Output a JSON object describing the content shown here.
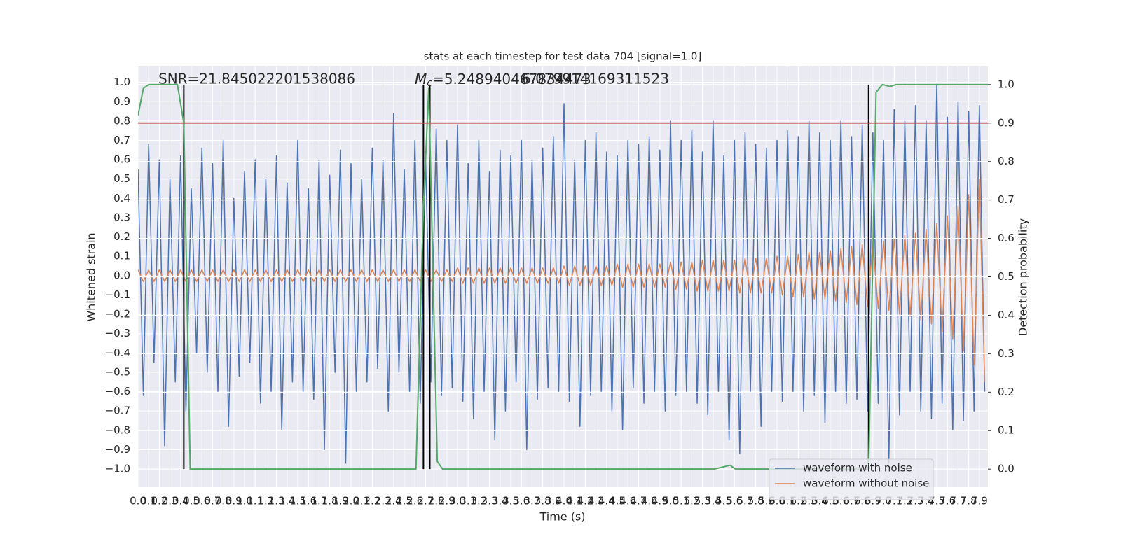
{
  "chart_data": {
    "type": "line",
    "title": "stats at each timestep for test data 704 [signal=1.0]",
    "xlabel": "Time (s)",
    "ylabel": "Whitened strain",
    "y2label": "Detection probability",
    "annotations": [
      {
        "text": "SNR=21.845022201538086"
      },
      {
        "symbol": "M",
        "subscript": "c",
        "text": "=5.248940467834473"
      },
      {
        "text": "6.079914169311523"
      }
    ],
    "grid": true,
    "y2grid": true,
    "legend": "lower right",
    "xlim": [
      0,
      7.98
    ],
    "ylim": [
      -1.094,
      1.082
    ],
    "y2lim": [
      -0.047,
      1.047
    ],
    "xticks": [
      {
        "value": 0,
        "label": "0.0"
      },
      0.1,
      0.2,
      0.3,
      0.4,
      0.5,
      0.6,
      0.7,
      0.8,
      0.9,
      {
        "value": 1,
        "label": "1.0"
      },
      1.1,
      1.2,
      1.3,
      1.4,
      1.5,
      1.6,
      1.7,
      1.8,
      1.9,
      {
        "value": 2,
        "label": "2.0"
      },
      2.1,
      2.2,
      2.3,
      2.4,
      2.5,
      2.6,
      2.7,
      2.8,
      2.9,
      {
        "value": 3,
        "label": "3.0"
      },
      3.1,
      3.2,
      3.3,
      3.4,
      3.5,
      3.6,
      3.7,
      3.8,
      3.9,
      {
        "value": 4,
        "label": "4.0"
      },
      4.1,
      4.2,
      4.3,
      4.4,
      4.5,
      4.6,
      4.7,
      4.8,
      4.9,
      {
        "value": 5,
        "label": "5.0"
      },
      5.1,
      5.2,
      5.3,
      5.4,
      5.5,
      5.6,
      5.7,
      5.8,
      5.9,
      {
        "value": 6,
        "label": "6.0"
      },
      6.1,
      6.2,
      6.3,
      6.4,
      6.5,
      6.6,
      6.7,
      6.8,
      6.9,
      {
        "value": 7,
        "label": "7.0"
      },
      7.1,
      7.2,
      7.3,
      7.4,
      7.5,
      7.6,
      7.7,
      7.8,
      7.9
    ],
    "yticks": [
      {
        "value": -1,
        "label": "−1.0"
      },
      {
        "value": -0.9,
        "label": "−0.9"
      },
      {
        "value": -0.8,
        "label": "−0.8"
      },
      {
        "value": -0.7,
        "label": "−0.7"
      },
      {
        "value": -0.6,
        "label": "−0.6"
      },
      {
        "value": -0.5,
        "label": "−0.5"
      },
      {
        "value": -0.4,
        "label": "−0.4"
      },
      {
        "value": -0.3,
        "label": "−0.3"
      },
      {
        "value": -0.2,
        "label": "−0.2"
      },
      {
        "value": -0.1,
        "label": "−0.1"
      },
      {
        "value": 0,
        "label": "0.0"
      },
      0.1,
      0.2,
      0.3,
      0.4,
      0.5,
      0.6,
      0.7,
      0.8,
      0.9,
      {
        "value": 1,
        "label": "1.0"
      }
    ],
    "y2ticks": [
      {
        "value": 0,
        "label": "0.0"
      },
      0.1,
      0.2,
      0.3,
      0.4,
      0.5,
      0.6,
      0.7,
      0.8,
      0.9,
      {
        "value": 1,
        "label": "1.0"
      }
    ],
    "x": [
      0,
      0.05,
      0.1,
      0.15,
      0.2,
      0.25,
      0.3,
      0.35,
      0.4,
      0.45,
      0.5,
      0.55,
      0.6,
      0.65,
      0.7,
      0.75,
      0.8,
      0.85,
      0.9,
      0.95,
      1,
      1.05,
      1.1,
      1.15,
      1.2,
      1.25,
      1.3,
      1.35,
      1.4,
      1.45,
      1.5,
      1.55,
      1.6,
      1.65,
      1.7,
      1.75,
      1.8,
      1.85,
      1.9,
      1.95,
      2,
      2.05,
      2.1,
      2.15,
      2.2,
      2.25,
      2.3,
      2.35,
      2.4,
      2.45,
      2.5,
      2.55,
      2.6,
      2.65,
      2.7,
      2.75,
      2.8,
      2.85,
      2.9,
      2.95,
      3,
      3.05,
      3.1,
      3.15,
      3.2,
      3.25,
      3.3,
      3.35,
      3.4,
      3.45,
      3.5,
      3.55,
      3.6,
      3.65,
      3.7,
      3.75,
      3.8,
      3.85,
      3.9,
      3.95,
      4,
      4.05,
      4.1,
      4.15,
      4.2,
      4.25,
      4.3,
      4.35,
      4.4,
      4.45,
      4.5,
      4.55,
      4.6,
      4.65,
      4.7,
      4.75,
      4.8,
      4.85,
      4.9,
      4.95,
      5,
      5.05,
      5.1,
      5.15,
      5.2,
      5.25,
      5.3,
      5.35,
      5.4,
      5.45,
      5.5,
      5.55,
      5.6,
      5.65,
      5.7,
      5.75,
      5.8,
      5.85,
      5.9,
      5.95,
      6,
      6.05,
      6.1,
      6.15,
      6.2,
      6.25,
      6.3,
      6.35,
      6.4,
      6.45,
      6.5,
      6.55,
      6.6,
      6.65,
      6.7,
      6.75,
      6.8,
      6.85,
      6.9,
      6.95,
      7,
      7.05,
      7.1,
      7.15,
      7.2,
      7.25,
      7.3,
      7.35,
      7.4,
      7.45,
      7.5,
      7.55,
      7.6,
      7.65,
      7.7,
      7.75,
      7.8,
      7.85,
      7.9,
      7.95
    ],
    "series": [
      {
        "name": "waveform with noise",
        "color": "#4c72b0",
        "values": [
          0.55,
          -0.62,
          0.68,
          -0.45,
          0.6,
          -0.88,
          0.5,
          -0.55,
          0.62,
          -0.7,
          0.45,
          -0.4,
          0.66,
          -0.5,
          0.58,
          -0.6,
          0.7,
          -0.78,
          0.4,
          -0.52,
          0.54,
          -0.45,
          0.6,
          -0.66,
          0.5,
          -0.6,
          0.62,
          -0.8,
          0.48,
          -0.55,
          0.7,
          -0.6,
          0.45,
          -0.64,
          0.6,
          -0.9,
          0.52,
          -0.5,
          0.65,
          -0.97,
          0.58,
          -0.6,
          0.5,
          -0.55,
          0.66,
          -0.48,
          0.6,
          -0.7,
          0.84,
          -0.5,
          0.55,
          -0.6,
          0.7,
          -0.66,
          0.62,
          -0.55,
          0.76,
          -0.62,
          0.7,
          -0.58,
          0.78,
          -0.65,
          0.58,
          -0.74,
          0.7,
          -0.6,
          0.54,
          -0.85,
          0.65,
          -0.7,
          0.62,
          -0.55,
          0.7,
          -0.9,
          0.6,
          -0.64,
          0.66,
          -0.58,
          0.72,
          -0.6,
          0.89,
          -0.65,
          0.6,
          -0.78,
          0.7,
          -0.62,
          0.74,
          -0.6,
          0.64,
          -0.7,
          0.62,
          -0.8,
          0.7,
          -0.58,
          0.68,
          -0.66,
          0.72,
          -0.6,
          0.65,
          -0.7,
          0.8,
          -0.62,
          0.7,
          -0.6,
          0.75,
          -0.66,
          0.64,
          -0.72,
          0.8,
          -0.6,
          0.62,
          -0.85,
          0.7,
          -0.92,
          0.74,
          -0.6,
          0.68,
          -0.78,
          0.66,
          -0.6,
          0.7,
          -0.65,
          0.75,
          -0.6,
          0.72,
          -0.7,
          0.8,
          -0.62,
          0.74,
          -0.76,
          0.7,
          -0.6,
          0.8,
          -0.66,
          0.72,
          -0.64,
          0.78,
          -0.7,
          0.74,
          -0.66,
          0.7,
          -0.97,
          0.86,
          -0.72,
          0.8,
          -0.6,
          0.88,
          -0.7,
          0.8,
          -0.74,
          0.99,
          -0.66,
          0.82,
          -0.8,
          0.9,
          -0.75,
          0.85,
          -0.7,
          0.88,
          -0.6
        ]
      },
      {
        "name": "waveform without noise",
        "color": "#dd8452",
        "values": [
          0.03,
          -0.03,
          0.03,
          -0.03,
          0.03,
          -0.03,
          0.03,
          -0.03,
          0.03,
          -0.03,
          0.03,
          -0.03,
          0.03,
          -0.03,
          0.03,
          -0.03,
          0.03,
          -0.03,
          0.03,
          -0.03,
          0.03,
          -0.03,
          0.03,
          -0.03,
          0.03,
          -0.03,
          0.03,
          -0.03,
          0.03,
          -0.03,
          0.03,
          -0.03,
          0.03,
          -0.03,
          0.03,
          -0.03,
          0.03,
          -0.03,
          0.03,
          -0.03,
          0.03,
          -0.03,
          0.03,
          -0.03,
          0.03,
          -0.03,
          0.03,
          -0.03,
          0.03,
          -0.03,
          0.03,
          -0.03,
          0.03,
          -0.03,
          0.03,
          -0.03,
          0.03,
          -0.03,
          0.03,
          -0.03,
          0.04,
          -0.04,
          0.04,
          -0.04,
          0.04,
          -0.04,
          0.04,
          -0.04,
          0.04,
          -0.04,
          0.04,
          -0.04,
          0.04,
          -0.04,
          0.04,
          -0.04,
          0.04,
          -0.04,
          0.04,
          -0.04,
          0.05,
          -0.05,
          0.05,
          -0.05,
          0.05,
          -0.05,
          0.05,
          -0.05,
          0.05,
          -0.05,
          0.06,
          -0.06,
          0.06,
          -0.06,
          0.06,
          -0.06,
          0.06,
          -0.06,
          0.06,
          -0.06,
          0.07,
          -0.07,
          0.07,
          -0.07,
          0.07,
          -0.08,
          0.08,
          -0.08,
          0.08,
          -0.08,
          0.08,
          -0.08,
          0.08,
          -0.09,
          0.09,
          -0.09,
          0.09,
          -0.09,
          0.09,
          -0.09,
          0.1,
          -0.1,
          0.1,
          -0.11,
          0.11,
          -0.11,
          0.12,
          -0.12,
          0.12,
          -0.12,
          0.13,
          -0.13,
          0.14,
          -0.14,
          0.15,
          -0.15,
          0.16,
          -0.16,
          0.17,
          -0.17,
          0.18,
          -0.18,
          0.19,
          -0.2,
          0.21,
          -0.21,
          0.22,
          -0.23,
          0.24,
          -0.25,
          0.27,
          -0.29,
          0.31,
          -0.33,
          0.36,
          -0.39,
          0.42,
          -0.46,
          0.5,
          -0.55
        ]
      },
      {
        "color": "#55a868",
        "axis": "y2",
        "x": [
          0,
          0.05,
          0.1,
          0.37,
          0.43,
          0.49,
          2.61,
          2.68,
          2.73,
          2.81,
          2.86,
          5.41,
          5.56,
          5.61,
          6.86,
          6.93,
          6.99,
          7.06,
          7.12,
          7.98
        ],
        "values": [
          0.92,
          0.99,
          1,
          1,
          0.9,
          0,
          0,
          0.68,
          0.99,
          0.02,
          0,
          0,
          0.01,
          0,
          0,
          0.98,
          1,
          0.995,
          1,
          1
        ]
      }
    ],
    "threshold": {
      "value": 0.9,
      "axis": "y2",
      "color": "#c44e52"
    },
    "vlines": {
      "x": [
        0.43,
        2.68,
        2.74,
        6.86
      ],
      "ymin": 0,
      "ymax": 1,
      "axis": "y2",
      "color": "#000000"
    }
  }
}
